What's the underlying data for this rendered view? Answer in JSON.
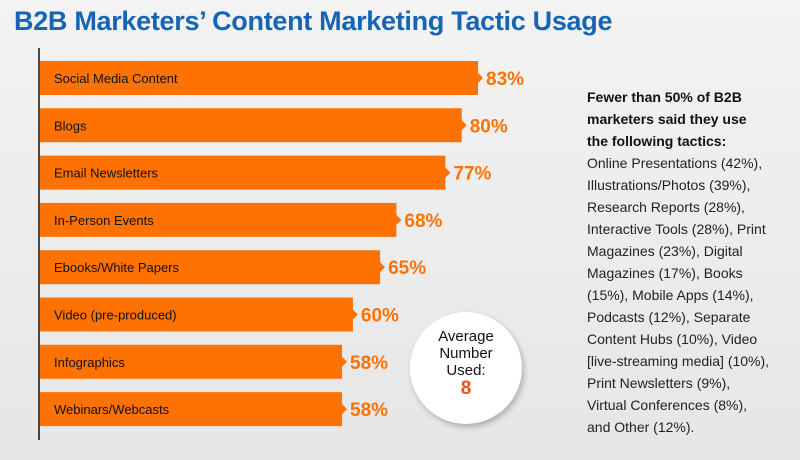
{
  "title": "B2B Marketers’ Content Marketing Tactic Usage",
  "chart_data": {
    "type": "bar",
    "orientation": "horizontal",
    "title": "B2B Marketers’ Content Marketing Tactic Usage",
    "categories": [
      "Social Media Content",
      "Blogs",
      "Email Newsletters",
      "In-Person Events",
      "Ebooks/White Papers",
      "Video (pre-produced)",
      "Infographics",
      "Webinars/Webcasts"
    ],
    "values": [
      83,
      80,
      77,
      68,
      65,
      60,
      58,
      58
    ],
    "value_labels": [
      "83%",
      "80%",
      "77%",
      "68%",
      "65%",
      "60%",
      "58%",
      "58%"
    ],
    "bar_color": "#ff7100",
    "label_color": "#ff7100",
    "grid": false
  },
  "badge": {
    "line1": "Average",
    "line2": "Number",
    "line3": "Used:",
    "value": "8"
  },
  "note": {
    "heading_lines": [
      "Fewer than 50% of B2B",
      "marketers said they use",
      "the following tactics:"
    ],
    "lines": [
      "Online Presentations (42%),",
      "Illustrations/Photos (39%),",
      "Research Reports (28%),",
      "Interactive Tools (28%), Print",
      "Magazines (23%), Digital",
      "Magazines (17%), Books",
      "(15%), Mobile Apps (14%),",
      "Podcasts (12%), Separate",
      "Content Hubs (10%), Video",
      "[live-streaming media] (10%),",
      "Print Newsletters (9%),",
      "Virtual Conferences (8%),",
      "and Other (12%)."
    ]
  }
}
